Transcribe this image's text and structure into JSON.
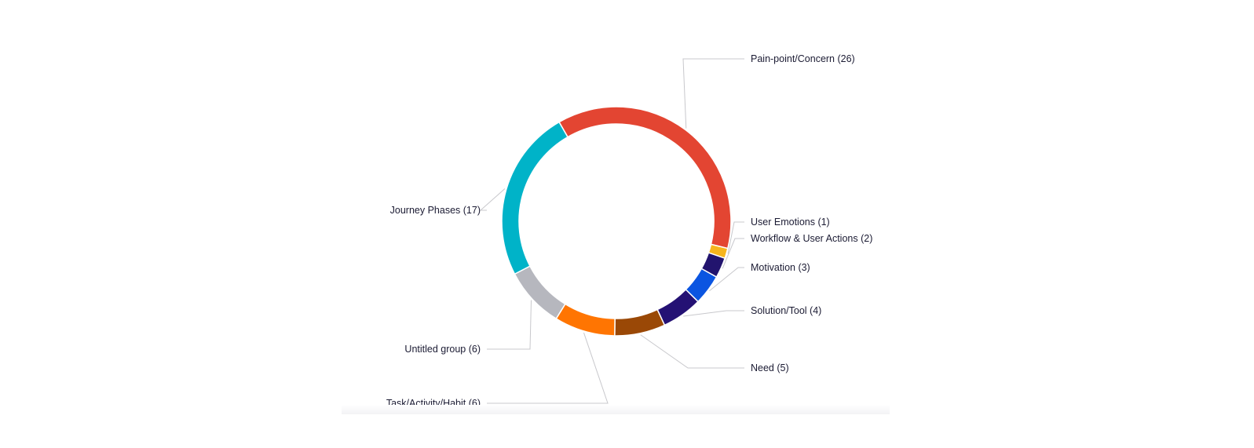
{
  "chart_data": {
    "type": "pie",
    "variant": "donut",
    "title": "",
    "legend": "none",
    "slices": [
      {
        "label": "Pain-point/Concern (26)",
        "category": "Pain-point/Concern",
        "value": 26,
        "color": "#e34532"
      },
      {
        "label": "User Emotions (1)",
        "category": "User Emotions",
        "value": 1,
        "color": "#f6b51e"
      },
      {
        "label": "Workflow & User Actions (2)",
        "category": "Workflow & User Actions",
        "value": 2,
        "color": "#22146e"
      },
      {
        "label": "Motivation (3)",
        "category": "Motivation",
        "value": 3,
        "color": "#0b55e1"
      },
      {
        "label": "Solution/Tool (4)",
        "category": "Solution/Tool",
        "value": 4,
        "color": "#241174"
      },
      {
        "label": "Need (5)",
        "category": "Need",
        "value": 5,
        "color": "#9a4806"
      },
      {
        "label": "Task/Activity/Habit (6)",
        "category": "Task/Activity/Habit",
        "value": 6,
        "color": "#ff7502"
      },
      {
        "label": "Untitled group (6)",
        "category": "Untitled group",
        "value": 6,
        "color": "#b6b7be"
      },
      {
        "label": "Journey Phases (17)",
        "category": "Journey Phases",
        "value": 17,
        "color": "#00b3c8"
      }
    ]
  }
}
